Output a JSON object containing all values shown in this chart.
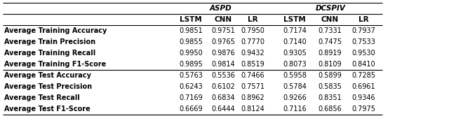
{
  "rows": [
    [
      "Average Training Accuracy",
      "0.9851",
      "0.9751",
      "0.7950",
      "0.7174",
      "0.7331",
      "0.7937"
    ],
    [
      "Average Train Precision",
      "0.9855",
      "0.9765",
      "0.7770",
      "0.7140",
      "0.7475",
      "0.7533"
    ],
    [
      "Average Training Recall",
      "0.9950",
      "0.9876",
      "0.9432",
      "0.9305",
      "0.8919",
      "0.9530"
    ],
    [
      "Average Training F1-Score",
      "0.9895",
      "0.9814",
      "0.8519",
      "0.8073",
      "0.8109",
      "0.8410"
    ],
    [
      "Average Test Accuracy",
      "0.5763",
      "0.5536",
      "0.7466",
      "0.5958",
      "0.5899",
      "0.7285"
    ],
    [
      "Average Test Precision",
      "0.6243",
      "0.6102",
      "0.7571",
      "0.5784",
      "0.5835",
      "0.6961"
    ],
    [
      "Average Test Recall",
      "0.7169",
      "0.6834",
      "0.8962",
      "0.9266",
      "0.8351",
      "0.9346"
    ],
    [
      "Average Test F1-Score",
      "0.6669",
      "0.6444",
      "0.8124",
      "0.7116",
      "0.6856",
      "0.7975"
    ]
  ],
  "aspd_label": "ASPD",
  "dcspiv_label": "DCSPIV",
  "sub_headers": [
    "LSTM",
    "CNN",
    "LR",
    "LSTM",
    "CNN",
    "LR"
  ],
  "bg_color": "#ffffff",
  "text_color": "#000000",
  "line_color": "#000000",
  "fontsize": 7.0,
  "header_fontsize": 7.5
}
